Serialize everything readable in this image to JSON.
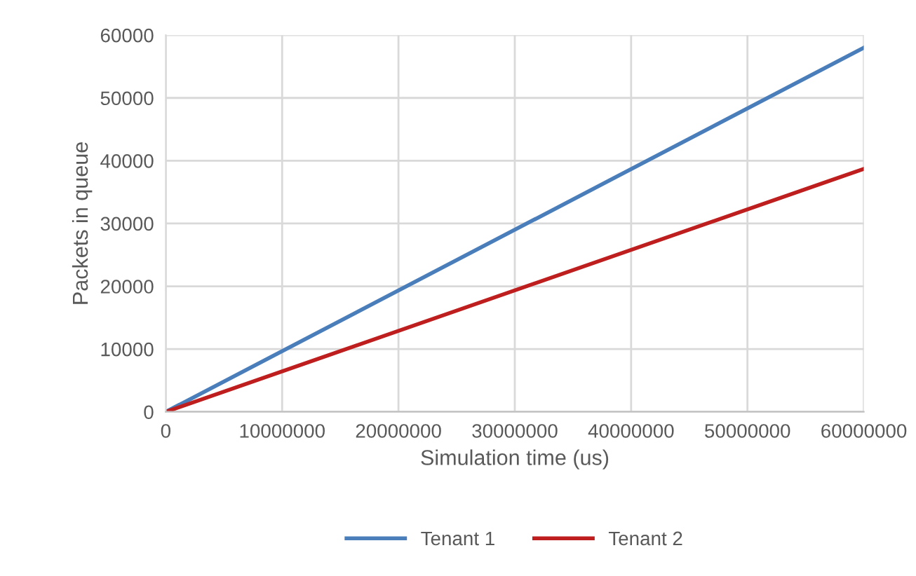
{
  "chart_data": {
    "type": "line",
    "xlabel": "Simulation time (us)",
    "ylabel": "Packets in queue",
    "x": [
      0,
      60000000
    ],
    "series": [
      {
        "name": "Tenant 1",
        "color": "#4a7ebb",
        "values": [
          0,
          58000
        ]
      },
      {
        "name": "Tenant 2",
        "color": "#be1e1e",
        "values": [
          0,
          38700
        ]
      }
    ],
    "xlim": [
      0,
      60000000
    ],
    "xticks": [
      0,
      10000000,
      20000000,
      30000000,
      40000000,
      50000000,
      60000000
    ],
    "ylim": [
      0,
      60000
    ],
    "yticks": [
      0,
      10000,
      20000,
      30000,
      40000,
      50000,
      60000
    ],
    "grid": true,
    "legend": "bottom",
    "marker": "none",
    "line_style": "solid"
  }
}
